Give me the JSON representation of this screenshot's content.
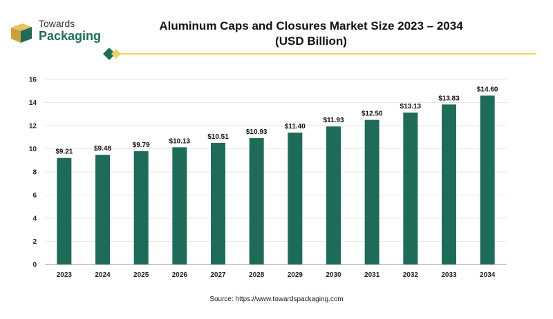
{
  "brand": {
    "top": "Towards",
    "main": "Packaging"
  },
  "colors": {
    "bar": "#1f6b5a",
    "accent": "#f0d060",
    "brand_green": "#1f6b5a"
  },
  "chart_data": {
    "type": "bar",
    "title": "Aluminum Caps and Closures Market Size 2023 – 2034",
    "subtitle": "(USD Billion)",
    "categories": [
      "2023",
      "2024",
      "2025",
      "2026",
      "2027",
      "2028",
      "2029",
      "2030",
      "2031",
      "2032",
      "2033",
      "2034"
    ],
    "values": [
      9.21,
      9.48,
      9.79,
      10.13,
      10.51,
      10.93,
      11.4,
      11.93,
      12.5,
      13.13,
      13.83,
      14.6
    ],
    "value_labels": [
      "$9.21",
      "$9.48",
      "$9.79",
      "$10.13",
      "$10.51",
      "$10.93",
      "$11.40",
      "$11.93",
      "$12.50",
      "$13.13",
      "$13.83",
      "$14.60"
    ],
    "ylim": [
      0,
      16
    ],
    "yticks": [
      0,
      2,
      4,
      6,
      8,
      10,
      12,
      14,
      16
    ],
    "xlabel": "",
    "ylabel": "",
    "grid": true,
    "legend": "none"
  },
  "source": "Source: https://www.towardspackaging.com"
}
